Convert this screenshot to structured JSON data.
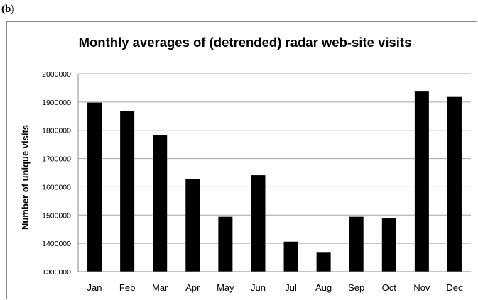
{
  "panel_label": "(b)",
  "chart_data": {
    "type": "bar",
    "title": "Monthly averages of (detrended) radar web-site visits",
    "xlabel": "",
    "ylabel": "Number of unique visits",
    "categories": [
      "Jan",
      "Feb",
      "Mar",
      "Apr",
      "May",
      "Jun",
      "Jul",
      "Aug",
      "Sep",
      "Oct",
      "Nov",
      "Dec"
    ],
    "values": [
      1898000,
      1868000,
      1783000,
      1627000,
      1494000,
      1641000,
      1406000,
      1367000,
      1494000,
      1488000,
      1937000,
      1918000
    ],
    "ylim": [
      1300000,
      2000000
    ],
    "yticks": [
      "1300000",
      "1400000",
      "1500000",
      "1600000",
      "1700000",
      "1800000",
      "1900000",
      "2000000"
    ],
    "bar_color": "#000000",
    "grid": true,
    "legend": false
  }
}
